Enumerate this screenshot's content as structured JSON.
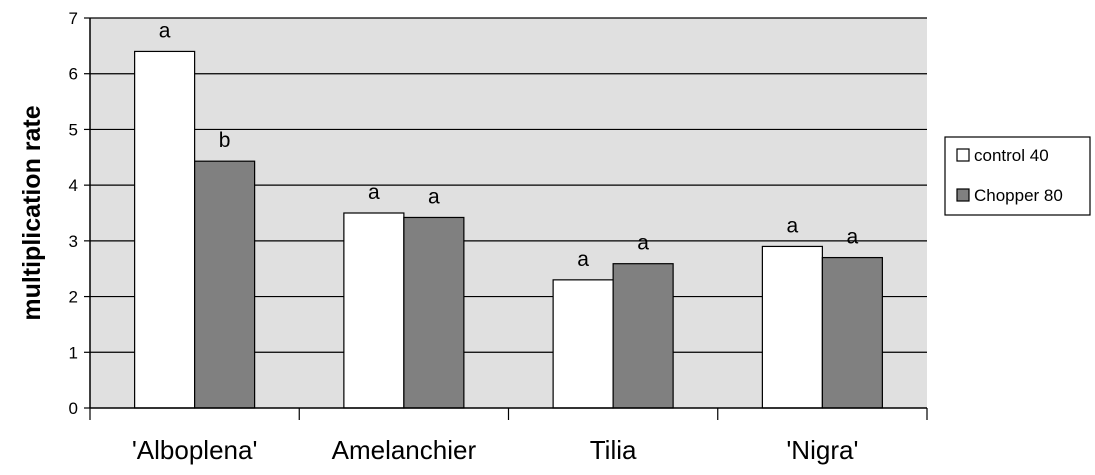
{
  "chart_data": {
    "type": "bar",
    "title": "",
    "xlabel": "",
    "ylabel": "multiplication rate",
    "ylim": [
      0,
      7
    ],
    "yticks": [
      0,
      1,
      2,
      3,
      4,
      5,
      6,
      7
    ],
    "grid": true,
    "legend_position": "right",
    "categories": [
      "'Alboplena'",
      "Amelanchier",
      "Tilia",
      "'Nigra'"
    ],
    "series": [
      {
        "name": "control 40",
        "color": "#ffffff",
        "values": [
          6.4,
          3.5,
          2.3,
          2.9
        ],
        "labels": [
          "a",
          "a",
          "a",
          "a"
        ]
      },
      {
        "name": "Chopper 80",
        "color": "#808080",
        "values": [
          4.43,
          3.42,
          2.59,
          2.7
        ],
        "labels": [
          "b",
          "a",
          "a",
          "a"
        ]
      }
    ],
    "plot_background": "#e0e0e0"
  }
}
